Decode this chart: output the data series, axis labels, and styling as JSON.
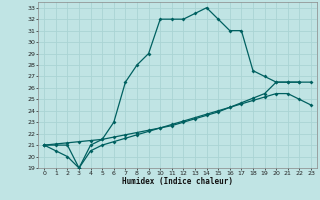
{
  "xlabel": "Humidex (Indice chaleur)",
  "bg_color": "#c0e4e4",
  "grid_color": "#aad4d4",
  "line_color": "#006060",
  "ylim": [
    19,
    33.5
  ],
  "xlim": [
    -0.5,
    23.5
  ],
  "yticks": [
    19,
    20,
    21,
    22,
    23,
    24,
    25,
    26,
    27,
    28,
    29,
    30,
    31,
    32,
    33
  ],
  "xticks": [
    0,
    1,
    2,
    3,
    4,
    5,
    6,
    7,
    8,
    9,
    10,
    11,
    12,
    13,
    14,
    15,
    16,
    17,
    18,
    19,
    20,
    21,
    22,
    23
  ],
  "curve1_x": [
    0,
    1,
    2,
    3,
    4,
    5,
    6,
    7,
    8,
    9,
    10,
    11,
    12,
    13,
    14,
    15,
    16,
    17,
    18,
    19,
    20,
    21,
    22
  ],
  "curve1_y": [
    21.0,
    20.5,
    20.0,
    19.0,
    21.0,
    21.5,
    23.0,
    26.5,
    28.0,
    29.0,
    32.0,
    32.0,
    32.0,
    32.5,
    33.0,
    32.0,
    31.0,
    31.0,
    27.5,
    27.0,
    26.5,
    26.5,
    26.5
  ],
  "curve2_x": [
    0,
    1,
    2,
    3,
    4,
    5,
    6,
    7,
    8,
    9,
    10,
    11,
    12,
    13,
    14,
    15,
    16,
    17,
    18,
    19,
    20,
    21,
    22,
    23
  ],
  "curve2_y": [
    21.0,
    21.1,
    21.2,
    21.3,
    21.4,
    21.5,
    21.7,
    21.9,
    22.1,
    22.3,
    22.5,
    22.7,
    23.0,
    23.3,
    23.6,
    23.9,
    24.3,
    24.7,
    25.1,
    25.5,
    26.5,
    26.5,
    26.5,
    26.5
  ],
  "curve3_x": [
    0,
    1,
    2,
    3,
    4,
    5,
    6,
    7,
    8,
    9,
    10,
    11,
    12,
    13,
    14,
    15,
    16,
    17,
    18,
    19,
    20,
    21,
    22,
    23
  ],
  "curve3_y": [
    21.0,
    21.0,
    21.0,
    19.0,
    20.5,
    21.0,
    21.3,
    21.6,
    21.9,
    22.2,
    22.5,
    22.8,
    23.1,
    23.4,
    23.7,
    24.0,
    24.3,
    24.6,
    24.9,
    25.2,
    25.5,
    25.5,
    25.0,
    24.5
  ]
}
